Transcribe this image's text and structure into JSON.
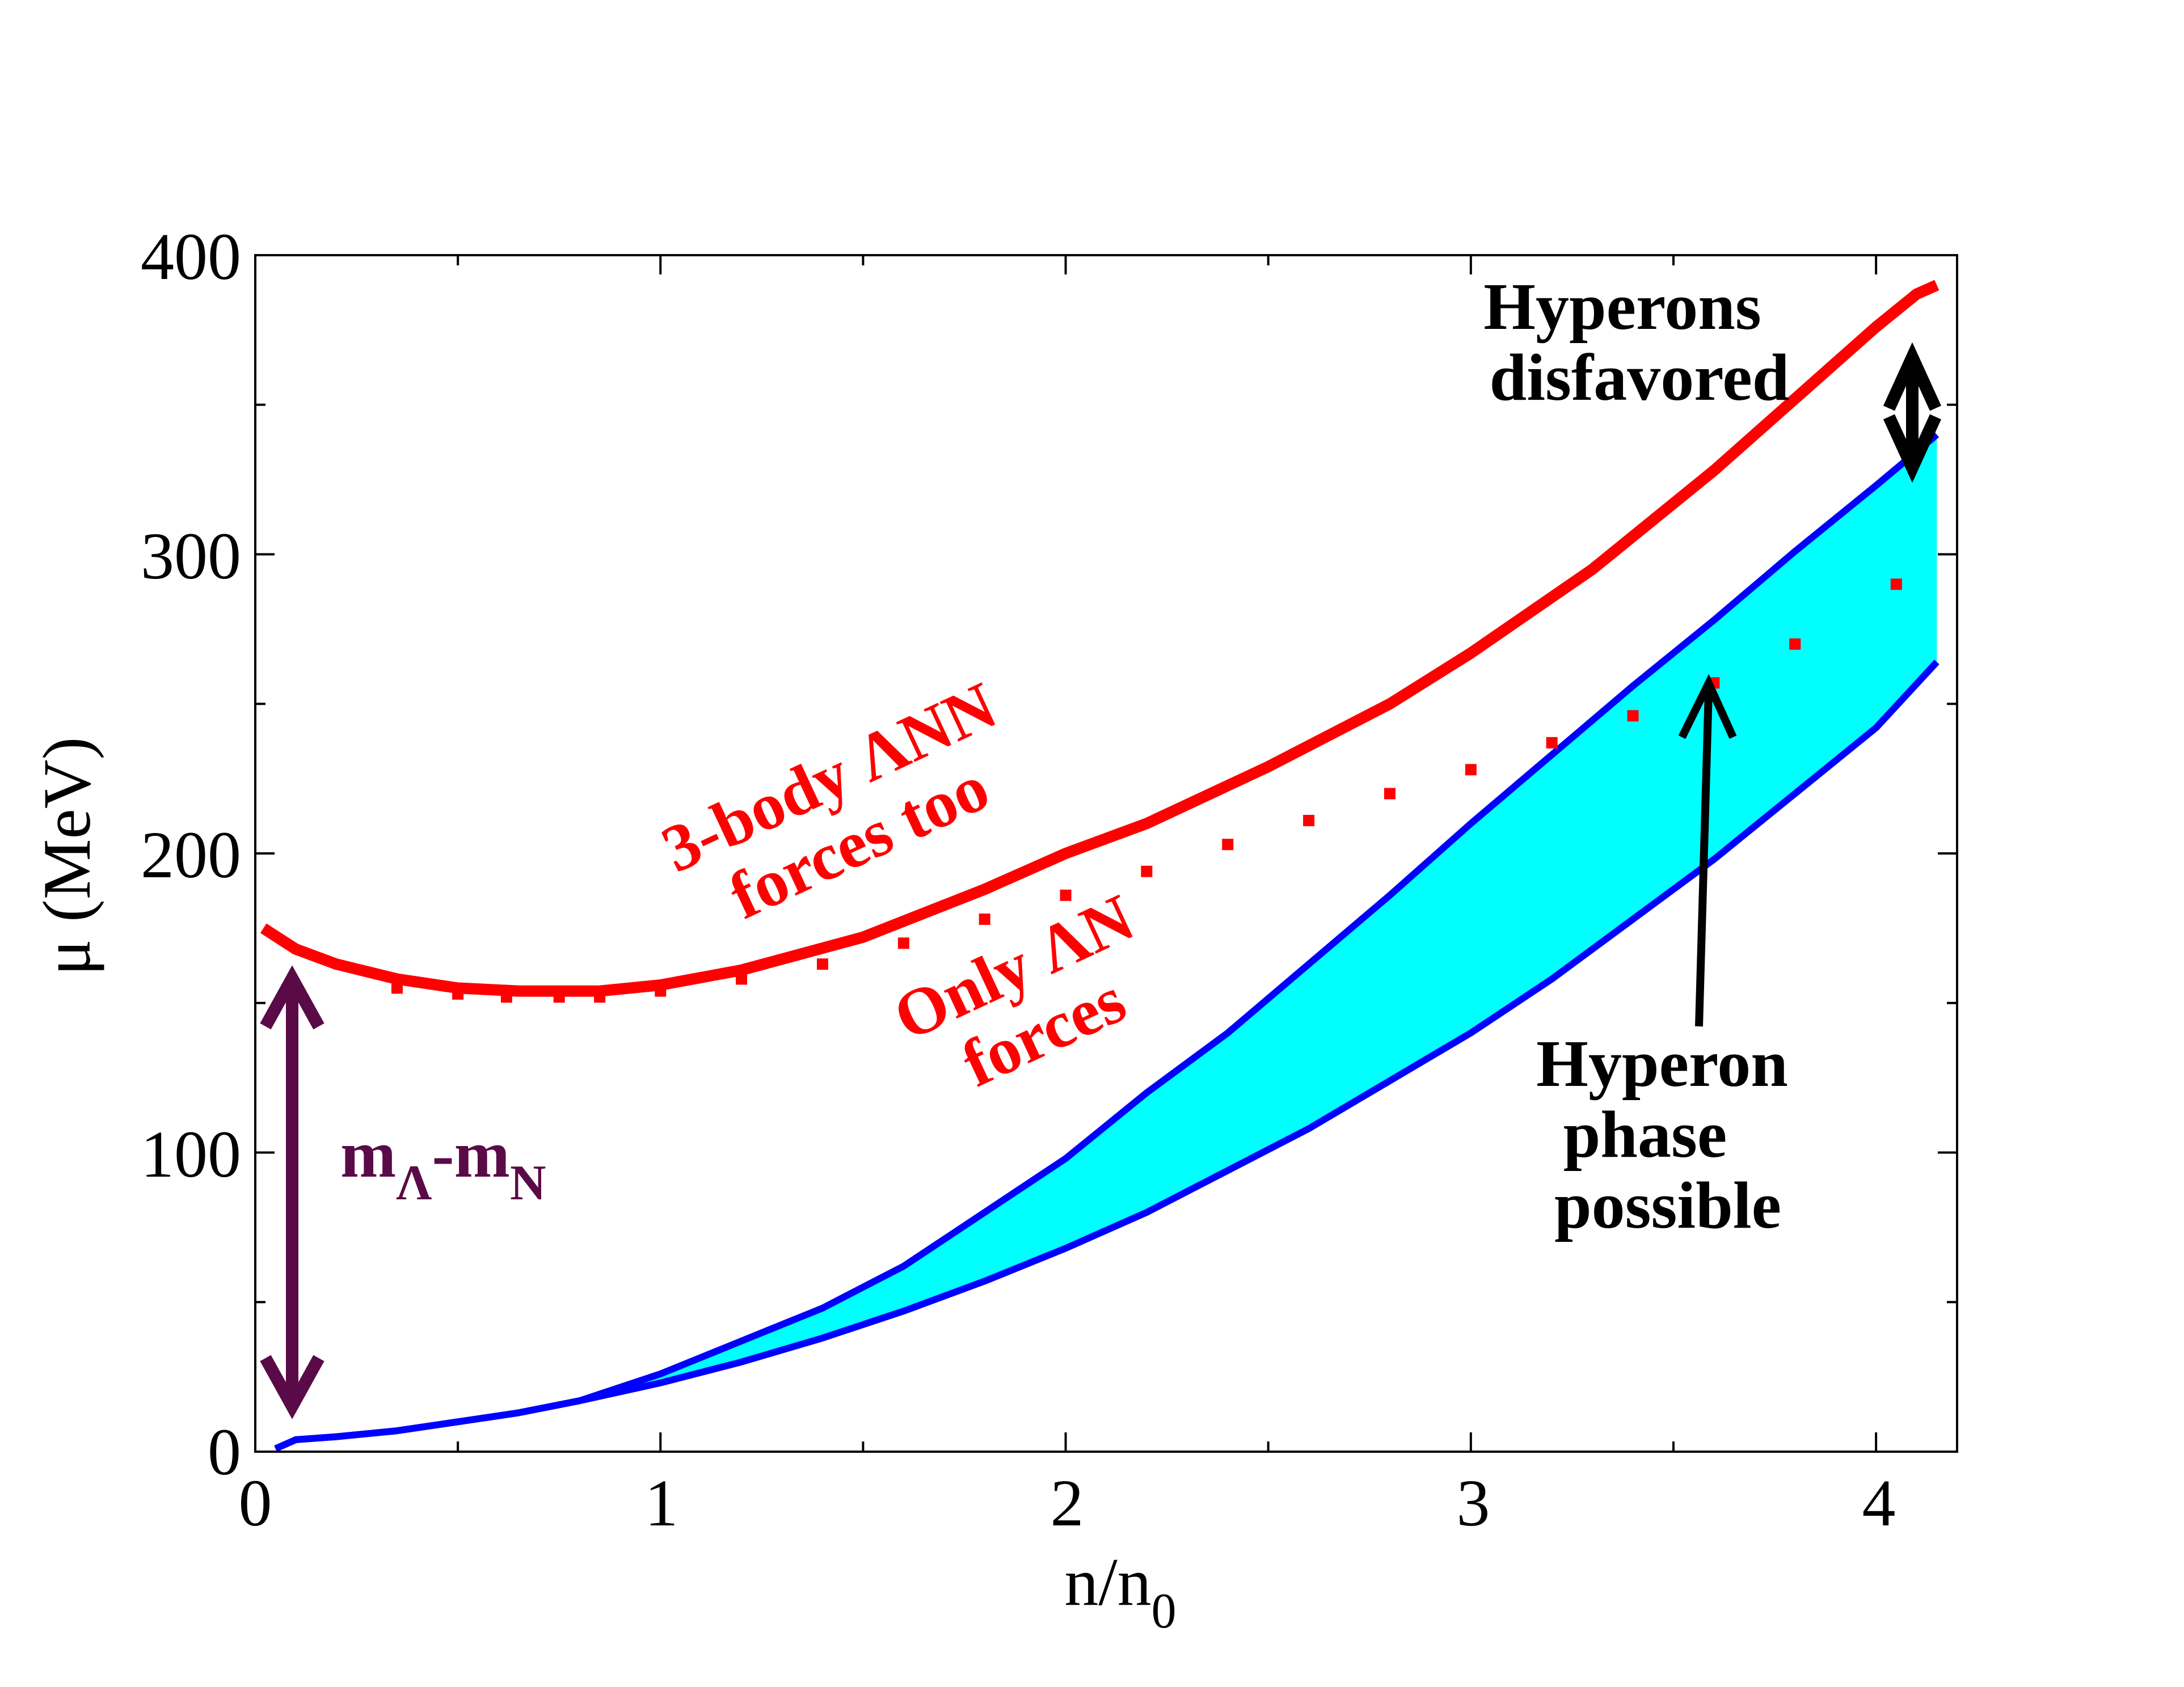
{
  "chart_data": {
    "type": "line",
    "xlabel": "n/n",
    "xlabel_sub": "0",
    "ylabel": "μ (MeV)",
    "xlim": [
      0,
      4.2
    ],
    "ylim": [
      0,
      400
    ],
    "x_ticks": [
      0,
      1,
      2,
      3,
      4
    ],
    "y_ticks": [
      0,
      100,
      200,
      300,
      400
    ],
    "x_tick_labels": [
      "0",
      "1",
      "2",
      "3",
      "4"
    ],
    "y_tick_labels": [
      "0",
      "100",
      "200",
      "300",
      "400"
    ],
    "grid": false,
    "series": [
      {
        "name": "3-body ΛNN forces too",
        "color": "#ff0000",
        "style": "solid",
        "x": [
          0.02,
          0.1,
          0.2,
          0.35,
          0.5,
          0.65,
          0.85,
          1.0,
          1.2,
          1.5,
          1.8,
          2.0,
          2.2,
          2.5,
          2.8,
          3.0,
          3.3,
          3.6,
          3.8,
          4.0,
          4.1,
          4.15
        ],
        "y": [
          175,
          168,
          163,
          158,
          155,
          154,
          154,
          156,
          161,
          172,
          188,
          200,
          210,
          229,
          250,
          267,
          295,
          328,
          352,
          376,
          387,
          390
        ]
      },
      {
        "name": "Only ΛN forces",
        "color": "#ff0000",
        "style": "dotted",
        "x": [
          0.35,
          0.5,
          0.62,
          0.75,
          0.85,
          1.0,
          1.2,
          1.4,
          1.6,
          1.8,
          2.0,
          2.2,
          2.4,
          2.6,
          2.8,
          3.0,
          3.2,
          3.4,
          3.6,
          3.8,
          4.05
        ],
        "y": [
          155,
          153,
          152,
          152,
          152,
          154,
          158,
          163,
          170,
          178,
          186,
          194,
          203,
          211,
          220,
          228,
          237,
          246,
          257,
          270,
          290
        ]
      },
      {
        "name": "upper blue",
        "color": "#0000ff",
        "style": "solid",
        "x": [
          0.05,
          0.1,
          0.2,
          0.35,
          0.5,
          0.65,
          0.8,
          1.0,
          1.2,
          1.4,
          1.6,
          1.8,
          2.0,
          2.2,
          2.4,
          2.6,
          2.8,
          3.0,
          3.2,
          3.4,
          3.6,
          3.8,
          4.0,
          4.15
        ],
        "y": [
          1,
          4,
          5,
          7,
          10,
          13,
          17,
          26,
          37,
          48,
          62,
          80,
          98,
          120,
          140,
          163,
          186,
          210,
          233,
          256,
          278,
          301,
          323,
          340
        ]
      },
      {
        "name": "lower blue",
        "color": "#0000ff",
        "style": "solid",
        "x": [
          0.05,
          0.1,
          0.2,
          0.35,
          0.5,
          0.65,
          0.8,
          1.0,
          1.2,
          1.4,
          1.6,
          1.8,
          2.0,
          2.2,
          2.4,
          2.6,
          2.8,
          3.0,
          3.2,
          3.4,
          3.6,
          3.8,
          4.0,
          4.15
        ],
        "y": [
          1,
          4,
          5,
          7,
          10,
          13,
          17,
          23,
          30,
          38,
          47,
          57,
          68,
          80,
          94,
          108,
          124,
          140,
          158,
          178,
          198,
          220,
          242,
          264
        ]
      }
    ],
    "annotations": {
      "three_body": [
        "3-body ΛNN",
        "forces too"
      ],
      "only_ln": [
        "Only ΛN",
        "forces"
      ],
      "mass_diff_main": "m",
      "mass_diff_sub_lambda": "Λ",
      "mass_diff_dash": "-m",
      "mass_diff_sub_n": "N",
      "hyperons_disfavored": [
        "Hyperons",
        "disfavored"
      ],
      "hyperon_phase": [
        "Hyperon",
        "phase",
        "possible"
      ]
    },
    "colors": {
      "axis": "#000000",
      "fill": "#00ffff",
      "mass_arrow": "#5a0a46",
      "red": "#ff0000",
      "blue": "#0000ff"
    }
  }
}
